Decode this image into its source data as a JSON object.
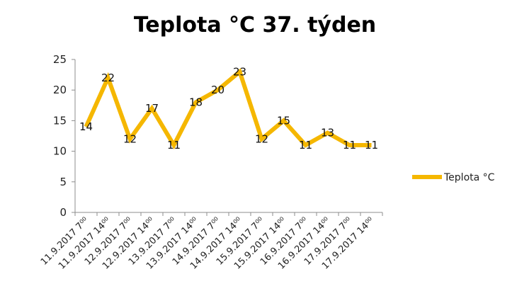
{
  "chart_data": {
    "type": "line",
    "title": "Teplota °C 37. týden",
    "xlabel": "",
    "ylabel": "",
    "ylim": [
      0,
      25
    ],
    "yticks": [
      0,
      5,
      10,
      15,
      20,
      25
    ],
    "grid": false,
    "legend": "right",
    "categories": [
      "11.9.2017 7⁰⁰",
      "11.9.2017 14⁰⁰",
      "12.9.2017 7⁰⁰",
      "12.9.2017 14⁰⁰",
      "13.9.2017 7⁰⁰",
      "13.9.2017 14⁰⁰",
      "14.9.2017 7⁰⁰",
      "14.9.2017 14⁰⁰",
      "15.9.2017 7⁰⁰",
      "15.9.2017 14⁰⁰",
      "16.9.2017 7⁰⁰",
      "16.9.2017 14⁰⁰",
      "17.9.2017 7⁰⁰",
      "17.9.2017 14⁰⁰"
    ],
    "series": [
      {
        "name": "Teplota °C",
        "color": "#f5b700",
        "values": [
          14,
          22,
          12,
          17,
          11,
          18,
          20,
          23,
          12,
          15,
          11,
          13,
          11,
          11
        ]
      }
    ]
  }
}
